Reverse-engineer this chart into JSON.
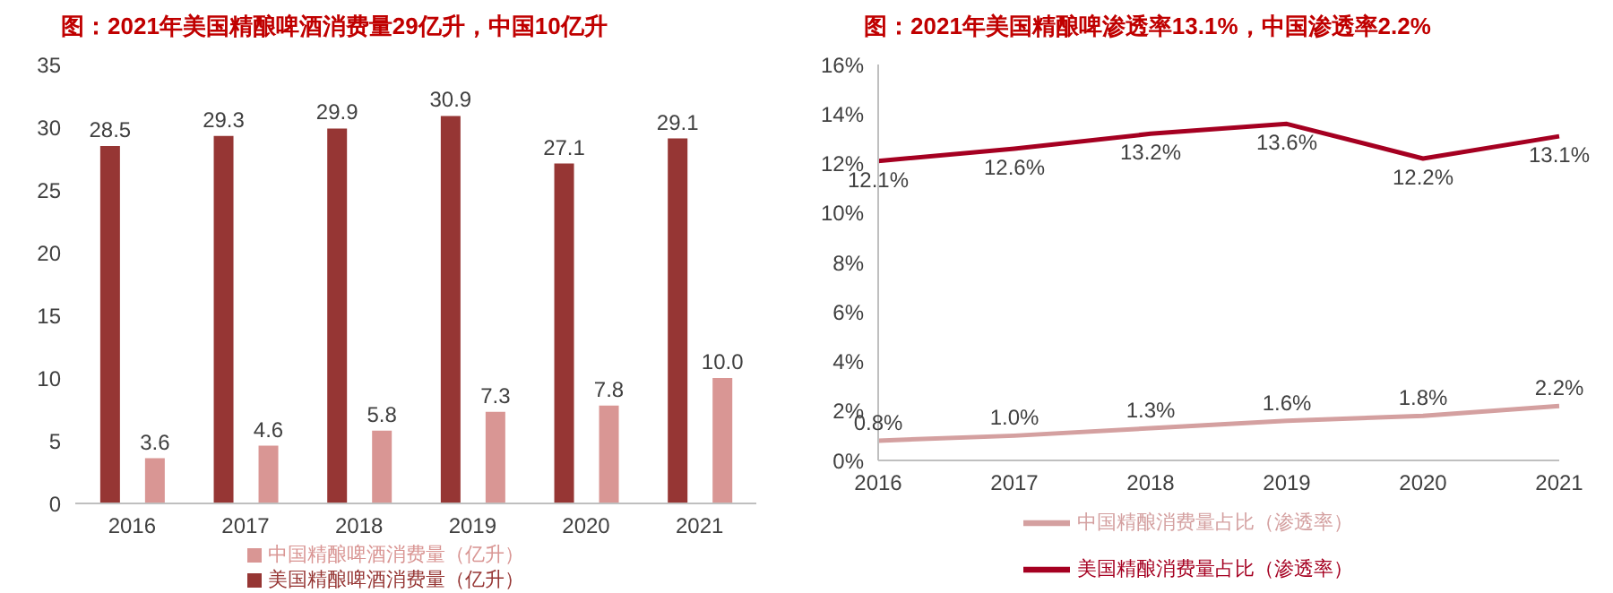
{
  "chart_data": [
    {
      "type": "bar",
      "title": "图：2021年美国精酿啤酒消费量29亿升，中国10亿升",
      "categories": [
        "2016",
        "2017",
        "2018",
        "2019",
        "2020",
        "2021"
      ],
      "series": [
        {
          "name": "美国精酿啤酒消费量（亿升）",
          "color": "#963634",
          "values": [
            28.5,
            29.3,
            29.9,
            30.9,
            27.1,
            29.1
          ],
          "value_labels": [
            "28.5",
            "29.3",
            "29.9",
            "30.9",
            "27.1",
            "29.1"
          ]
        },
        {
          "name": "中国精酿啤酒消费量（亿升）",
          "color": "#d99694",
          "values": [
            3.6,
            4.6,
            5.8,
            7.3,
            7.8,
            10.0
          ],
          "value_labels": [
            "3.6",
            "4.6",
            "5.8",
            "7.3",
            "7.8",
            "10.0"
          ]
        }
      ],
      "ylim": [
        0,
        35
      ],
      "yticks": [
        0,
        5,
        10,
        15,
        20,
        25,
        30,
        35
      ],
      "legend": "bottom"
    },
    {
      "type": "line",
      "title": "图：2021年美国精酿啤渗透率13.1%，中国渗透率2.2%",
      "categories": [
        "2016",
        "2017",
        "2018",
        "2019",
        "2020",
        "2021"
      ],
      "series": [
        {
          "name": "美国精酿消费量占比（渗透率）",
          "color": "#a50021",
          "values": [
            12.1,
            12.6,
            13.2,
            13.6,
            12.2,
            13.1
          ],
          "value_labels": [
            "12.1%",
            "12.6%",
            "13.2%",
            "13.6%",
            "12.2%",
            "13.1%"
          ]
        },
        {
          "name": "中国精酿消费量占比（渗透率）",
          "color": "#d4a0a0",
          "values": [
            0.8,
            1.0,
            1.3,
            1.6,
            1.8,
            2.2
          ],
          "value_labels": [
            "0.8%",
            "1.0%",
            "1.3%",
            "1.6%",
            "1.8%",
            "2.2%"
          ]
        }
      ],
      "ylim": [
        0,
        16
      ],
      "yticks": [
        {
          "value": 0,
          "label": "0%"
        },
        {
          "value": 2,
          "label": "2%"
        },
        {
          "value": 4,
          "label": "4%"
        },
        {
          "value": 6,
          "label": "6%"
        },
        {
          "value": 8,
          "label": "8%"
        },
        {
          "value": 10,
          "label": "10%"
        },
        {
          "value": 12,
          "label": "12%"
        },
        {
          "value": 14,
          "label": "14%"
        },
        {
          "value": 16,
          "label": "16%"
        }
      ],
      "legend": "bottom"
    }
  ]
}
